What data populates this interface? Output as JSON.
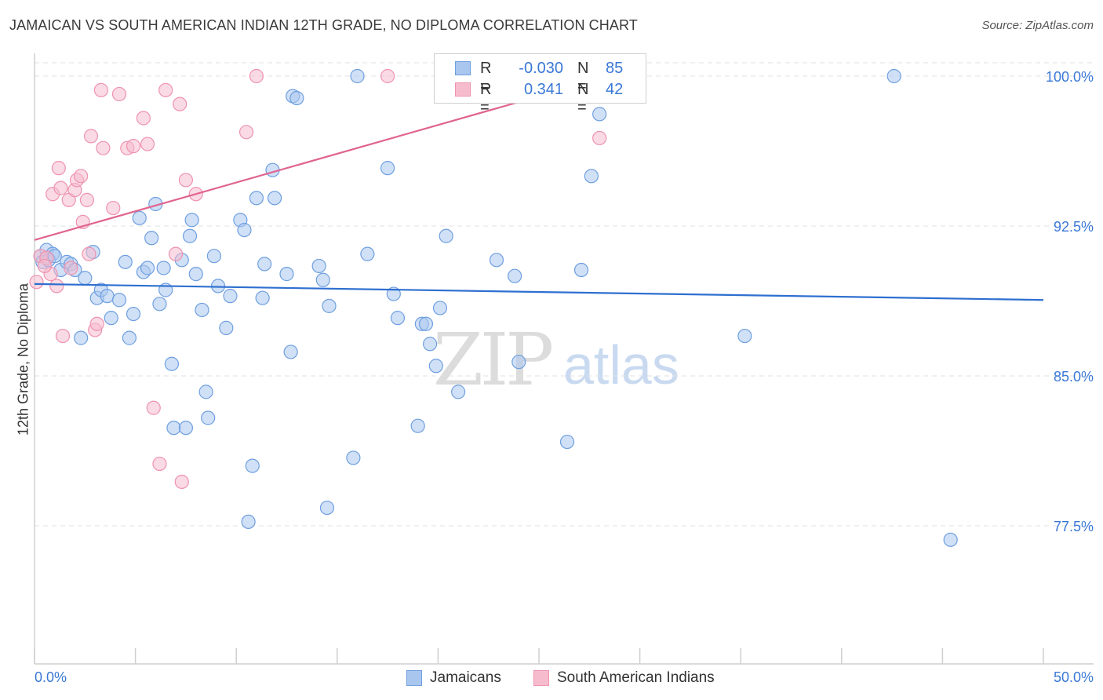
{
  "header": {
    "title": "JAMAICAN VS SOUTH AMERICAN INDIAN 12TH GRADE, NO DIPLOMA CORRELATION CHART",
    "source": "Source: ZipAtlas.com"
  },
  "watermark": {
    "zip": "ZIP",
    "atlas": "atlas"
  },
  "legend_top": {
    "rows": [
      {
        "r_label": "R =",
        "r_value": "-0.030",
        "n_label": "N =",
        "n_value": "85"
      },
      {
        "r_label": "R =",
        "r_value": "0.341",
        "n_label": "N =",
        "n_value": "42"
      }
    ]
  },
  "legend_bottom": {
    "items": [
      {
        "label": "Jamaicans"
      },
      {
        "label": "South American Indians"
      }
    ]
  },
  "colors": {
    "blue_fill": "#a9c6ee",
    "blue_stroke": "#6f9fe0",
    "blue_line": "#2e6fd0",
    "pink_fill": "#f6bccd",
    "pink_stroke": "#ee93b0",
    "pink_line": "#e0648f",
    "tick_label": "#3a78d6",
    "grid": "#e2e2e2"
  },
  "chart_data": {
    "type": "scatter",
    "title": "JAMAICAN VS SOUTH AMERICAN INDIAN 12TH GRADE, NO DIPLOMA CORRELATION CHART",
    "xlabel": "",
    "ylabel": "12th Grade, No Diploma",
    "xlim": [
      0,
      50
    ],
    "ylim": [
      70.0,
      101.2
    ],
    "x_tick_labels": [
      "0.0%",
      "50.0%"
    ],
    "y_ticks": [
      77.5,
      85.0,
      92.5,
      100.0
    ],
    "y_tick_labels": [
      "77.5%",
      "85.0%",
      "92.5%",
      "100.0%"
    ],
    "grid": true,
    "series": [
      {
        "name": "Jamaicans",
        "color": "#a9c6ee",
        "trend": {
          "x": [
            0,
            50
          ],
          "y": [
            89.6,
            88.8
          ]
        },
        "points": [
          [
            0.3,
            91.0
          ],
          [
            0.4,
            90.7
          ],
          [
            0.6,
            91.3
          ],
          [
            0.9,
            91.1
          ],
          [
            1.3,
            90.3
          ],
          [
            1.6,
            90.7
          ],
          [
            1.8,
            90.6
          ],
          [
            2.0,
            90.3
          ],
          [
            2.5,
            89.9
          ],
          [
            2.9,
            91.2
          ],
          [
            3.1,
            88.9
          ],
          [
            3.3,
            89.3
          ],
          [
            3.6,
            89.0
          ],
          [
            3.8,
            87.9
          ],
          [
            4.2,
            88.8
          ],
          [
            4.5,
            90.7
          ],
          [
            4.7,
            86.9
          ],
          [
            4.9,
            88.1
          ],
          [
            5.2,
            92.9
          ],
          [
            5.4,
            90.2
          ],
          [
            5.6,
            90.4
          ],
          [
            5.8,
            91.9
          ],
          [
            6.0,
            93.6
          ],
          [
            6.2,
            88.6
          ],
          [
            6.4,
            90.4
          ],
          [
            6.5,
            89.3
          ],
          [
            6.8,
            85.6
          ],
          [
            6.9,
            82.4
          ],
          [
            7.3,
            90.8
          ],
          [
            7.5,
            82.4
          ],
          [
            7.7,
            92.0
          ],
          [
            7.8,
            92.8
          ],
          [
            8.0,
            90.1
          ],
          [
            8.3,
            88.3
          ],
          [
            8.5,
            84.2
          ],
          [
            8.6,
            82.9
          ],
          [
            8.9,
            91.0
          ],
          [
            9.1,
            89.5
          ],
          [
            9.5,
            87.4
          ],
          [
            9.7,
            89.0
          ],
          [
            10.2,
            92.8
          ],
          [
            10.4,
            92.3
          ],
          [
            10.6,
            77.7
          ],
          [
            10.8,
            80.5
          ],
          [
            11.0,
            93.9
          ],
          [
            11.3,
            88.9
          ],
          [
            11.4,
            90.6
          ],
          [
            11.8,
            95.3
          ],
          [
            11.9,
            93.9
          ],
          [
            12.5,
            90.1
          ],
          [
            12.7,
            86.2
          ],
          [
            12.8,
            99.0
          ],
          [
            13.0,
            98.9
          ],
          [
            14.1,
            90.5
          ],
          [
            14.3,
            89.8
          ],
          [
            14.5,
            78.4
          ],
          [
            14.6,
            88.5
          ],
          [
            15.8,
            80.9
          ],
          [
            16.0,
            100.0
          ],
          [
            16.5,
            91.1
          ],
          [
            17.5,
            95.4
          ],
          [
            17.8,
            89.1
          ],
          [
            18.0,
            87.9
          ],
          [
            19.0,
            82.5
          ],
          [
            19.2,
            87.6
          ],
          [
            19.4,
            87.6
          ],
          [
            19.6,
            86.6
          ],
          [
            19.9,
            85.5
          ],
          [
            20.1,
            88.4
          ],
          [
            20.4,
            92.0
          ],
          [
            21.0,
            84.2
          ],
          [
            22.9,
            90.8
          ],
          [
            23.8,
            90.0
          ],
          [
            24.0,
            85.7
          ],
          [
            26.4,
            81.7
          ],
          [
            26.5,
            100.0
          ],
          [
            27.1,
            90.3
          ],
          [
            27.6,
            95.0
          ],
          [
            28.0,
            98.1
          ],
          [
            35.2,
            87.0
          ],
          [
            42.6,
            100.0
          ],
          [
            45.4,
            76.8
          ],
          [
            0.7,
            90.8
          ],
          [
            1.0,
            91.0
          ],
          [
            2.3,
            86.9
          ]
        ]
      },
      {
        "name": "South American Indians",
        "color": "#f6bccd",
        "trend": {
          "x": [
            0,
            28.5
          ],
          "y": [
            91.8,
            100.0
          ]
        },
        "points": [
          [
            0.1,
            89.7
          ],
          [
            0.3,
            91.0
          ],
          [
            0.6,
            90.9
          ],
          [
            0.8,
            90.1
          ],
          [
            0.9,
            94.1
          ],
          [
            1.1,
            89.5
          ],
          [
            1.2,
            95.4
          ],
          [
            1.3,
            94.4
          ],
          [
            1.4,
            87.0
          ],
          [
            1.7,
            93.8
          ],
          [
            1.8,
            90.4
          ],
          [
            2.0,
            94.3
          ],
          [
            2.1,
            94.8
          ],
          [
            2.3,
            95.0
          ],
          [
            2.4,
            92.7
          ],
          [
            2.6,
            93.8
          ],
          [
            2.7,
            91.1
          ],
          [
            2.8,
            97.0
          ],
          [
            3.0,
            87.3
          ],
          [
            3.1,
            87.6
          ],
          [
            3.3,
            99.3
          ],
          [
            3.4,
            96.4
          ],
          [
            3.9,
            93.4
          ],
          [
            4.2,
            99.1
          ],
          [
            4.6,
            96.4
          ],
          [
            4.9,
            96.5
          ],
          [
            5.4,
            97.9
          ],
          [
            5.6,
            96.6
          ],
          [
            5.9,
            83.4
          ],
          [
            6.2,
            80.6
          ],
          [
            6.5,
            99.3
          ],
          [
            7.0,
            91.1
          ],
          [
            7.2,
            98.6
          ],
          [
            7.3,
            79.7
          ],
          [
            7.5,
            94.8
          ],
          [
            8.0,
            94.1
          ],
          [
            10.5,
            97.2
          ],
          [
            11.0,
            100.0
          ],
          [
            17.5,
            100.0
          ],
          [
            22.3,
            100.0
          ],
          [
            28.0,
            96.9
          ],
          [
            0.5,
            90.5
          ]
        ]
      }
    ]
  }
}
